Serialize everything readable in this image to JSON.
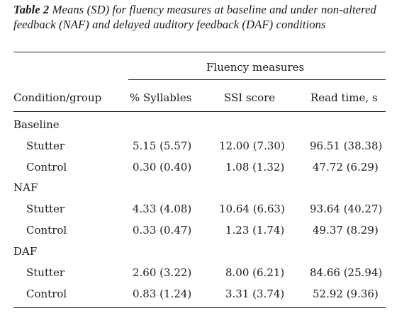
{
  "caption": {
    "lead": "Table 2",
    "text": " Means (SD) for fluency measures at baseline and under non-altered feedback (NAF) and delayed auditory feedback (DAF) conditions"
  },
  "table": {
    "group_header": "Fluency measures",
    "columns": [
      "Condition/group",
      "% Syllables",
      "SSI score",
      "Read time, s"
    ],
    "sections": [
      {
        "label": "Baseline",
        "rows": [
          {
            "label": "Stutter",
            "cells": [
              "5.15 (5.57)",
              "12.00 (7.30)",
              "96.51 (38.38)"
            ]
          },
          {
            "label": "Control",
            "cells": [
              "0.30 (0.40)",
              "1.08 (1.32)",
              "47.72 (6.29)"
            ]
          }
        ]
      },
      {
        "label": "NAF",
        "rows": [
          {
            "label": "Stutter",
            "cells": [
              "4.33 (4.08)",
              "10.64 (6.63)",
              "93.64 (40.27)"
            ]
          },
          {
            "label": "Control",
            "cells": [
              "0.33 (0.47)",
              "1.23 (1.74)",
              "49.37 (8.29)"
            ]
          }
        ]
      },
      {
        "label": "DAF",
        "rows": [
          {
            "label": "Stutter",
            "cells": [
              "2.60 (3.22)",
              "8.00 (6.21)",
              "84.66 (25.94)"
            ]
          },
          {
            "label": "Control",
            "cells": [
              "0.83 (1.24)",
              "3.31 (3.74)",
              "52.92 (9.36)"
            ]
          }
        ]
      }
    ]
  }
}
